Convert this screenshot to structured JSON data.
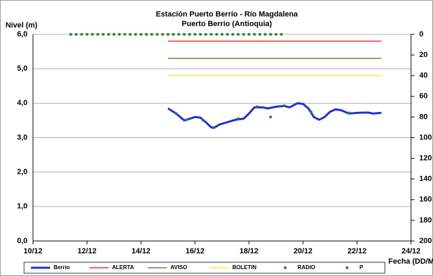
{
  "chart_data": {
    "type": "line",
    "title": "Estación Puerto Berrío - Río Magdalena",
    "subtitle": "Puerto Berrio (Antioquia)",
    "ylabel": "Nivel (m)",
    "xlabel": "Fecha (DD/M/AA)",
    "xlim": [
      10,
      24
    ],
    "xticks": [
      {
        "value": 10,
        "label": "10/12"
      },
      {
        "value": 12,
        "label": "12/12"
      },
      {
        "value": 14,
        "label": "14/12"
      },
      {
        "value": 16,
        "label": "16/12"
      },
      {
        "value": 18,
        "label": "18/12"
      },
      {
        "value": 20,
        "label": "20/12"
      },
      {
        "value": 22,
        "label": "22/12"
      },
      {
        "value": 24,
        "label": "24/12"
      }
    ],
    "ylim": [
      0,
      6
    ],
    "yticks": [
      {
        "value": 0,
        "label": "0,0"
      },
      {
        "value": 1,
        "label": "1,0"
      },
      {
        "value": 2,
        "label": "2,0"
      },
      {
        "value": 3,
        "label": "3,0"
      },
      {
        "value": 4,
        "label": "4,0"
      },
      {
        "value": 5,
        "label": "5,0"
      },
      {
        "value": 6,
        "label": "6,0"
      }
    ],
    "y2lim": [
      200,
      0
    ],
    "y2ticks": [
      0,
      20,
      40,
      60,
      80,
      100,
      120,
      140,
      160,
      180,
      200
    ],
    "grid": true,
    "legend": "bottom",
    "series": [
      {
        "name": "Berrio",
        "color": "#1f2fd6",
        "style": "line",
        "width": 3,
        "x": [
          15.0,
          15.3,
          15.6,
          15.8,
          16.0,
          16.2,
          16.4,
          16.6,
          16.7,
          16.9,
          17.2,
          17.5,
          17.8,
          18.0,
          18.2,
          18.5,
          18.7,
          19.0,
          19.3,
          19.5,
          19.8,
          20.0,
          20.2,
          20.4,
          20.6,
          20.8,
          21.0,
          21.2,
          21.4,
          21.7,
          22.0,
          22.4,
          22.6,
          22.9
        ],
        "values": [
          3.85,
          3.7,
          3.5,
          3.55,
          3.6,
          3.58,
          3.45,
          3.3,
          3.28,
          3.38,
          3.45,
          3.52,
          3.55,
          3.7,
          3.88,
          3.88,
          3.85,
          3.9,
          3.92,
          3.88,
          4.0,
          3.98,
          3.85,
          3.6,
          3.52,
          3.6,
          3.75,
          3.82,
          3.8,
          3.7,
          3.72,
          3.73,
          3.7,
          3.72
        ]
      },
      {
        "name": "ALERTA",
        "color": "#e8302c",
        "style": "line",
        "width": 1.5,
        "x": [
          15.0,
          22.9
        ],
        "values": [
          5.8,
          5.8
        ]
      },
      {
        "name": "AVISO",
        "color": "#9c6a3a",
        "style": "line",
        "width": 1.5,
        "x": [
          15.0,
          22.9
        ],
        "values": [
          5.3,
          5.3
        ]
      },
      {
        "name": "BOLETIN",
        "color": "#f2ee3c",
        "style": "line",
        "width": 1.5,
        "x": [
          15.0,
          22.9
        ],
        "values": [
          4.8,
          4.8
        ]
      },
      {
        "name": "RADIO",
        "color": "#1f8a2e",
        "style": "markers",
        "x": [
          15.3,
          15.7,
          16.3,
          16.7,
          17.6,
          18.3,
          18.8,
          19.3,
          20.3,
          21.7
        ],
        "values": [
          3.7,
          3.52,
          3.5,
          3.3,
          3.55,
          3.9,
          3.6,
          3.93,
          3.75,
          3.72
        ]
      },
      {
        "name": "P",
        "color": "#1f8a2e",
        "style": "markers",
        "axis": "y2",
        "x": [
          11.4,
          11.6,
          11.8,
          12.0,
          12.2,
          12.4,
          12.6,
          12.8,
          13.0,
          13.2,
          13.4,
          13.6,
          13.8,
          14.0,
          14.2,
          14.4,
          14.6,
          14.8,
          15.0,
          15.2,
          15.4,
          15.6,
          15.8,
          16.0,
          16.2,
          16.4,
          16.6,
          16.8,
          17.0,
          17.2,
          17.4,
          17.6,
          17.8,
          18.0,
          18.2,
          18.4,
          18.6,
          18.8,
          19.0,
          19.2
        ],
        "values": [
          0,
          0,
          0,
          0,
          0,
          0,
          0,
          0,
          0,
          0,
          0,
          0,
          0,
          0,
          0,
          0,
          0,
          0,
          0,
          0,
          0,
          0,
          0,
          0,
          0,
          0,
          0,
          0,
          0,
          0,
          0,
          0,
          0,
          0,
          0,
          0,
          0,
          0,
          0,
          0
        ]
      }
    ]
  }
}
